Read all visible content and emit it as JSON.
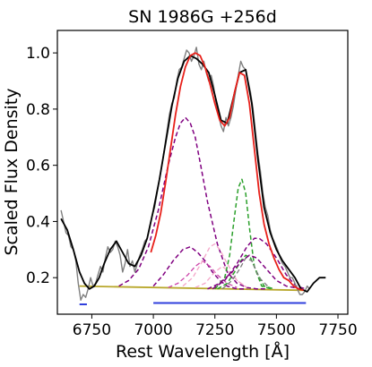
{
  "chart_data": {
    "type": "line",
    "title": "SN 1986G  +256d",
    "xlabel": "Rest Wavelength [Å]",
    "ylabel": "Scaled Flux Density",
    "xlim": [
      6610,
      7790
    ],
    "ylim": [
      0.07,
      1.08
    ],
    "xticks": [
      6750,
      7000,
      7250,
      7500,
      7750
    ],
    "xtick_labels": [
      "6750",
      "7000",
      "7250",
      "7500",
      "7750"
    ],
    "yticks": [
      0.2,
      0.4,
      0.6,
      0.8,
      1.0
    ],
    "ytick_labels": [
      "0.2",
      "0.4",
      "0.6",
      "0.8",
      "1.0"
    ],
    "grid": false,
    "legend": "none",
    "continuum": {
      "x": [
        6700,
        7610
      ],
      "y": [
        0.17,
        0.155
      ],
      "color": "#b8a72a"
    },
    "continuum_ranges": [
      {
        "x": [
          6700,
          6730
        ],
        "y": 0.105,
        "color": "#2f3fdc"
      },
      {
        "x": [
          7000,
          7620
        ],
        "y": 0.11,
        "color": "#2f3fdc"
      }
    ],
    "series": [
      {
        "style": "solid",
        "color": "#000000",
        "width": 1.8,
        "x": [
          6625,
          6650,
          6675,
          6700,
          6720,
          6740,
          6760,
          6780,
          6800,
          6825,
          6850,
          6875,
          6900,
          6925,
          6950,
          6975,
          7000,
          7025,
          7050,
          7075,
          7100,
          7125,
          7150,
          7175,
          7200,
          7225,
          7250,
          7275,
          7300,
          7325,
          7350,
          7375,
          7400,
          7425,
          7450,
          7475,
          7500,
          7525,
          7550,
          7575,
          7600,
          7625,
          7650,
          7675,
          7700
        ],
        "y": [
          0.41,
          0.37,
          0.3,
          0.22,
          0.18,
          0.16,
          0.17,
          0.2,
          0.25,
          0.3,
          0.33,
          0.29,
          0.25,
          0.24,
          0.28,
          0.34,
          0.44,
          0.55,
          0.68,
          0.81,
          0.91,
          0.97,
          0.99,
          0.98,
          0.96,
          0.93,
          0.85,
          0.76,
          0.75,
          0.84,
          0.93,
          0.94,
          0.82,
          0.62,
          0.45,
          0.36,
          0.3,
          0.26,
          0.23,
          0.2,
          0.16,
          0.15,
          0.18,
          0.2,
          0.2
        ]
      },
      {
        "style": "solid",
        "color": "#7f7f7f",
        "width": 1.4,
        "x": [
          6625,
          6635,
          6645,
          6655,
          6665,
          6675,
          6685,
          6695,
          6705,
          6715,
          6725,
          6735,
          6745,
          6755,
          6765,
          6775,
          6785,
          6795,
          6805,
          6815,
          6825,
          6835,
          6845,
          6855,
          6865,
          6875,
          6885,
          6895,
          6905,
          6915,
          6925,
          6935,
          6945,
          6955,
          6965,
          6975,
          6985,
          6995,
          7005,
          7015,
          7025,
          7035,
          7045,
          7055,
          7065,
          7075,
          7085,
          7095,
          7105,
          7115,
          7125,
          7135,
          7145,
          7155,
          7165,
          7175,
          7185,
          7195,
          7205,
          7215,
          7225,
          7235,
          7245,
          7255,
          7265,
          7275,
          7285,
          7295,
          7305,
          7315,
          7325,
          7335,
          7345,
          7355,
          7365,
          7375,
          7385,
          7395,
          7405,
          7415,
          7425,
          7435,
          7445,
          7455,
          7465,
          7475,
          7485,
          7495,
          7505,
          7515,
          7525,
          7535,
          7545,
          7555,
          7565,
          7575,
          7585,
          7595,
          7605,
          7615,
          7625,
          7635
        ],
        "y": [
          0.44,
          0.4,
          0.36,
          0.35,
          0.31,
          0.3,
          0.26,
          0.18,
          0.12,
          0.14,
          0.13,
          0.16,
          0.2,
          0.17,
          0.18,
          0.21,
          0.24,
          0.22,
          0.27,
          0.31,
          0.29,
          0.3,
          0.33,
          0.31,
          0.28,
          0.22,
          0.25,
          0.3,
          0.24,
          0.26,
          0.22,
          0.25,
          0.28,
          0.3,
          0.33,
          0.34,
          0.38,
          0.42,
          0.45,
          0.5,
          0.55,
          0.6,
          0.66,
          0.72,
          0.78,
          0.82,
          0.84,
          0.9,
          0.94,
          0.95,
          0.98,
          1.01,
          1.0,
          0.97,
          0.99,
          1.02,
          0.96,
          0.94,
          0.97,
          0.93,
          0.9,
          0.92,
          0.88,
          0.82,
          0.78,
          0.74,
          0.72,
          0.77,
          0.74,
          0.77,
          0.81,
          0.87,
          0.92,
          0.97,
          0.95,
          0.94,
          0.9,
          0.86,
          0.8,
          0.72,
          0.64,
          0.58,
          0.5,
          0.45,
          0.42,
          0.37,
          0.34,
          0.32,
          0.3,
          0.27,
          0.25,
          0.24,
          0.22,
          0.2,
          0.2,
          0.18,
          0.16,
          0.14,
          0.14,
          0.15,
          0.17,
          0.16
        ]
      },
      {
        "style": "solid",
        "color": "#e8201a",
        "width": 1.8,
        "x": [
          6990,
          7010,
          7030,
          7050,
          7070,
          7090,
          7110,
          7130,
          7150,
          7170,
          7190,
          7210,
          7230,
          7250,
          7270,
          7290,
          7310,
          7330,
          7350,
          7370,
          7390,
          7410,
          7430,
          7450,
          7470,
          7490,
          7510,
          7530,
          7550,
          7570,
          7590,
          7610
        ],
        "y": [
          0.29,
          0.35,
          0.43,
          0.54,
          0.66,
          0.78,
          0.88,
          0.95,
          0.99,
          1.0,
          0.99,
          0.95,
          0.89,
          0.82,
          0.76,
          0.74,
          0.77,
          0.86,
          0.93,
          0.92,
          0.82,
          0.66,
          0.5,
          0.39,
          0.32,
          0.27,
          0.23,
          0.2,
          0.19,
          0.17,
          0.16,
          0.155
        ]
      },
      {
        "style": "dashed",
        "color": "#800080",
        "width": 1.5,
        "x": [
          6860,
          6900,
          6940,
          6980,
          7020,
          7060,
          7090,
          7110,
          7130,
          7150,
          7170,
          7190,
          7220,
          7260,
          7300,
          7340,
          7380,
          7420,
          7460
        ],
        "y": [
          0.17,
          0.19,
          0.23,
          0.31,
          0.44,
          0.6,
          0.7,
          0.75,
          0.77,
          0.75,
          0.7,
          0.61,
          0.47,
          0.32,
          0.22,
          0.18,
          0.165,
          0.16,
          0.16
        ]
      },
      {
        "style": "dashed",
        "color": "#800080",
        "width": 1.5,
        "x": [
          7000,
          7040,
          7080,
          7120,
          7150,
          7180,
          7210,
          7240,
          7270,
          7300,
          7340,
          7380
        ],
        "y": [
          0.17,
          0.21,
          0.26,
          0.3,
          0.31,
          0.29,
          0.26,
          0.22,
          0.19,
          0.17,
          0.16,
          0.16
        ]
      },
      {
        "style": "dashed",
        "color": "#cc44aa",
        "width": 1.3,
        "x": [
          7060,
          7100,
          7140,
          7170,
          7200,
          7230,
          7260,
          7300,
          7340
        ],
        "y": [
          0.165,
          0.18,
          0.21,
          0.24,
          0.26,
          0.24,
          0.21,
          0.18,
          0.165
        ]
      },
      {
        "style": "dashed",
        "color": "#f4a6c8",
        "width": 1.3,
        "x": [
          7120,
          7160,
          7200,
          7230,
          7250,
          7270,
          7300,
          7340,
          7380
        ],
        "y": [
          0.17,
          0.2,
          0.26,
          0.31,
          0.32,
          0.3,
          0.25,
          0.19,
          0.165
        ]
      },
      {
        "style": "dashed",
        "color": "#f4a6c8",
        "width": 1.3,
        "x": [
          7170,
          7210,
          7250,
          7280,
          7310,
          7340,
          7380
        ],
        "y": [
          0.165,
          0.18,
          0.22,
          0.24,
          0.22,
          0.19,
          0.165
        ]
      },
      {
        "style": "dashed",
        "color": "#2ca02c",
        "width": 1.5,
        "x": [
          7250,
          7290,
          7310,
          7330,
          7345,
          7360,
          7375,
          7390,
          7410,
          7440,
          7480
        ],
        "y": [
          0.16,
          0.2,
          0.28,
          0.42,
          0.52,
          0.55,
          0.5,
          0.38,
          0.24,
          0.17,
          0.16
        ]
      },
      {
        "style": "dashed",
        "color": "#2ca02c",
        "width": 1.5,
        "x": [
          7260,
          7300,
          7330,
          7355,
          7375,
          7395,
          7420,
          7450,
          7490
        ],
        "y": [
          0.16,
          0.18,
          0.22,
          0.26,
          0.28,
          0.27,
          0.22,
          0.17,
          0.16
        ]
      },
      {
        "style": "dashed",
        "color": "#7a7a7a",
        "width": 1.3,
        "x": [
          7280,
          7320,
          7350,
          7375,
          7400,
          7430,
          7470
        ],
        "y": [
          0.16,
          0.19,
          0.23,
          0.27,
          0.26,
          0.2,
          0.165
        ]
      },
      {
        "style": "dashed",
        "color": "#800080",
        "width": 1.5,
        "x": [
          7240,
          7290,
          7340,
          7380,
          7410,
          7430,
          7460,
          7500,
          7540,
          7580,
          7620
        ],
        "y": [
          0.16,
          0.19,
          0.25,
          0.31,
          0.34,
          0.34,
          0.32,
          0.27,
          0.21,
          0.17,
          0.16
        ]
      },
      {
        "style": "dashed",
        "color": "#800080",
        "width": 1.5,
        "x": [
          7220,
          7270,
          7320,
          7360,
          7390,
          7420,
          7460,
          7500,
          7540,
          7600
        ],
        "y": [
          0.16,
          0.18,
          0.22,
          0.26,
          0.28,
          0.27,
          0.23,
          0.19,
          0.17,
          0.16
        ]
      }
    ]
  }
}
